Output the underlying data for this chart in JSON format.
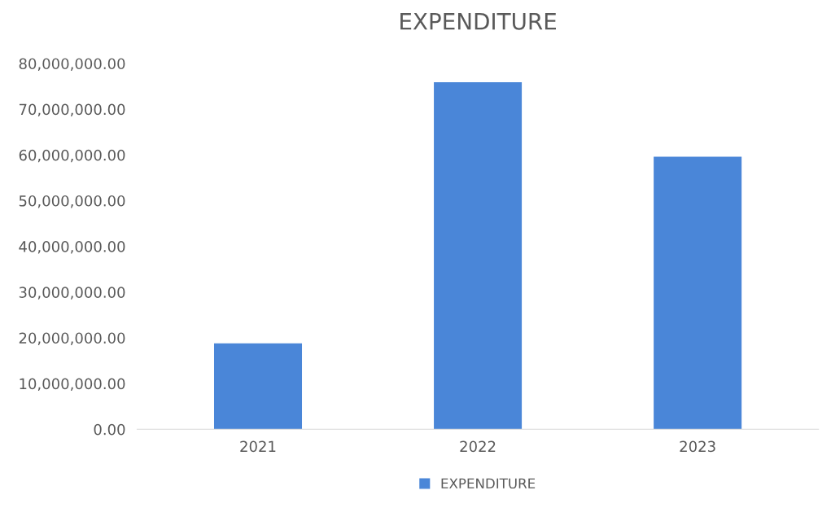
{
  "chart_data": {
    "type": "bar",
    "title": "EXPENDITURE",
    "categories": [
      "2021",
      "2022",
      "2023"
    ],
    "series": [
      {
        "name": "EXPENDITURE",
        "color": "#4a86d8",
        "values": [
          18800000,
          75900000,
          59600000
        ]
      }
    ],
    "ylim": [
      0,
      80000000
    ],
    "yticks": [
      {
        "value": 0,
        "label": "0.00"
      },
      {
        "value": 10000000,
        "label": "10,000,000.00"
      },
      {
        "value": 20000000,
        "label": "20,000,000.00"
      },
      {
        "value": 30000000,
        "label": "30,000,000.00"
      },
      {
        "value": 40000000,
        "label": "40,000,000.00"
      },
      {
        "value": 50000000,
        "label": "50,000,000.00"
      },
      {
        "value": 60000000,
        "label": "60,000,000.00"
      },
      {
        "value": 70000000,
        "label": "70,000,000.00"
      },
      {
        "value": 80000000,
        "label": "80,000,000.00"
      }
    ],
    "grid": false,
    "legend": "bottom"
  }
}
